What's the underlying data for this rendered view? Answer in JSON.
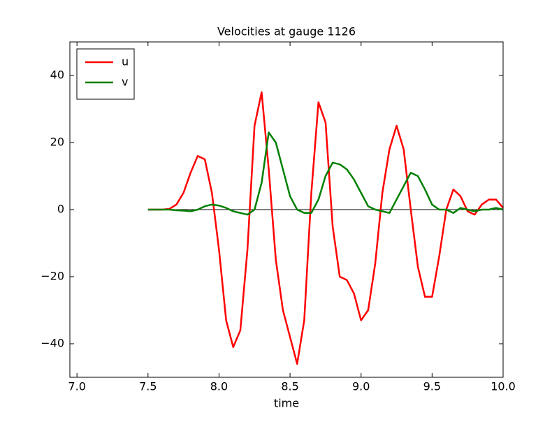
{
  "chart_data": {
    "type": "line",
    "title": "Velocities at gauge 1126",
    "xlabel": "time",
    "x": [
      7.5,
      7.55,
      7.6,
      7.65,
      7.7,
      7.75,
      7.8,
      7.85,
      7.9,
      7.95,
      8.0,
      8.05,
      8.1,
      8.15,
      8.2,
      8.25,
      8.3,
      8.35,
      8.4,
      8.45,
      8.5,
      8.55,
      8.6,
      8.65,
      8.7,
      8.75,
      8.8,
      8.85,
      8.9,
      8.95,
      9.0,
      9.05,
      9.1,
      9.15,
      9.2,
      9.25,
      9.3,
      9.35,
      9.4,
      9.45,
      9.5,
      9.55,
      9.6,
      9.65,
      9.7,
      9.75,
      9.8,
      9.85,
      9.9,
      9.95,
      10.0
    ],
    "series": [
      {
        "name": "u",
        "color": "#ff0000",
        "values": [
          0,
          0,
          0,
          0.2,
          1.5,
          5,
          11,
          16,
          15,
          5,
          -12,
          -33,
          -41,
          -36,
          -12,
          25,
          35,
          12,
          -15,
          -30,
          -38,
          -46,
          -33,
          5,
          32,
          26,
          -5,
          -20,
          -21,
          -25,
          -33,
          -30,
          -16,
          5,
          18,
          25,
          18,
          0,
          -17,
          -26,
          -26,
          -14,
          0,
          6,
          4,
          -0.5,
          -1.5,
          1.5,
          3,
          3,
          0.5
        ]
      },
      {
        "name": "v",
        "color": "#008000",
        "values": [
          0,
          0,
          0,
          0,
          -0.2,
          -0.3,
          -0.5,
          0,
          1,
          1.5,
          1.2,
          0.5,
          -0.5,
          -1,
          -1.5,
          0,
          8,
          23,
          20,
          12,
          4,
          0,
          -1,
          -1,
          3,
          10,
          14,
          13.5,
          12,
          9,
          5,
          1,
          0,
          -0.5,
          -1,
          3,
          7,
          11,
          10,
          6,
          1.5,
          0,
          0,
          -1,
          0.5,
          0,
          -0.5,
          0,
          0,
          0.5,
          0
        ]
      }
    ],
    "hline": 0,
    "xlim": [
      6.95,
      10.0
    ],
    "ylim": [
      -50,
      50
    ],
    "xticks": [
      {
        "value": 7,
        "label": "7.0"
      },
      7.5,
      {
        "value": 8,
        "label": "8.0"
      },
      8.5,
      {
        "value": 9,
        "label": "9.0"
      },
      9.5,
      {
        "value": 10,
        "label": "10.0"
      }
    ],
    "yticks": [
      {
        "value": -40,
        "label": "−40"
      },
      {
        "value": -20,
        "label": "−20"
      },
      0,
      20,
      40
    ],
    "legend": "upper left"
  }
}
